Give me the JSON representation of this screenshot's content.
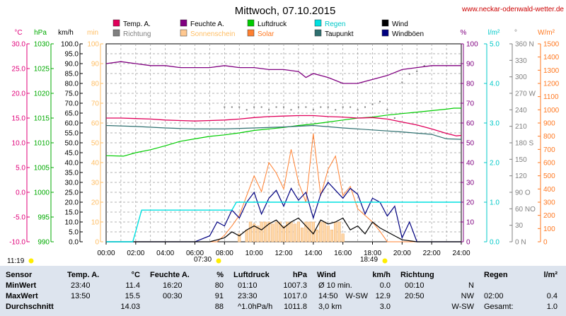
{
  "chart_data": {
    "type": "line",
    "title": "Mittwoch, 07.10.2015",
    "source": "www.neckar-odenwald-wetter.de",
    "legend": [
      {
        "label": "Temp. A.",
        "color": "#e0005a"
      },
      {
        "label": "Feuchte A.",
        "color": "#800080"
      },
      {
        "label": "Luftdruck",
        "color": "#00cc00"
      },
      {
        "label": "Regen",
        "color": "#00e0e0"
      },
      {
        "label": "Wind",
        "color": "#000000"
      },
      {
        "label": "Richtung",
        "color": "#808080"
      },
      {
        "label": "Sonnenschein",
        "color": "#ffc890"
      },
      {
        "label": "Solar",
        "color": "#ff8030"
      },
      {
        "label": "Taupunkt",
        "color": "#2f7070"
      },
      {
        "label": "Windböen",
        "color": "#000080"
      }
    ],
    "axis_units": {
      "temp": "°C",
      "pressure": "hPa",
      "wind": "km/h",
      "sun": "min",
      "humidity": "%",
      "rain": "l/m²",
      "direction": "°",
      "solar": "W/m²"
    },
    "x_ticks": [
      "00:00",
      "02:00",
      "04:00",
      "06:00",
      "08:00",
      "10:00",
      "12:00",
      "14:00",
      "16:00",
      "18:00",
      "20:00",
      "22:00",
      "24:00"
    ],
    "ylim": {
      "temp": [
        -10,
        30
      ],
      "pressure": [
        990,
        1030
      ],
      "wind": [
        0,
        100
      ],
      "sun": [
        0,
        100
      ],
      "humidity": [
        0,
        100
      ],
      "rain": [
        0,
        5
      ],
      "direction": [
        0,
        360
      ],
      "solar": [
        0,
        1500
      ]
    },
    "y_ticks": {
      "temp": [
        "-10.0",
        "-5.0",
        "0.0",
        "5.0",
        "10.0",
        "15.0",
        "20.0",
        "25.0",
        "30.0"
      ],
      "pressure": [
        "990",
        "995",
        "1000",
        "1005",
        "1010",
        "1015",
        "1020",
        "1025",
        "1030"
      ],
      "wind": [
        "0.0",
        "5.0",
        "10.0",
        "15.0",
        "20.0",
        "25.0",
        "30.0",
        "35.0",
        "40.0",
        "45.0",
        "50.0",
        "55.0",
        "60.0",
        "65.0",
        "70.0",
        "75.0",
        "80.0",
        "85.0",
        "90.0",
        "95.0",
        "100.0"
      ],
      "sun": [
        "0",
        "10",
        "20",
        "30",
        "40",
        "50",
        "60",
        "70",
        "80",
        "90",
        "100"
      ],
      "humidity": [
        "0",
        "10",
        "20",
        "30",
        "40",
        "50",
        "60",
        "70",
        "80",
        "90",
        "100"
      ],
      "rain": [
        "0.0",
        "1.0",
        "2.0",
        "3.0",
        "4.0",
        "5.0"
      ],
      "direction": [
        "0 N",
        "30",
        "60 NO",
        "90 O",
        "120",
        "150",
        "180 S",
        "210",
        "240",
        "270 W",
        "300",
        "330",
        "360 N"
      ],
      "solar": [
        "0",
        "100",
        "200",
        "300",
        "400",
        "500",
        "600",
        "700",
        "800",
        "900",
        "1000",
        "1100",
        "1200",
        "1300",
        "1400",
        "1500"
      ]
    },
    "sun_events": {
      "sunrise": "07:30",
      "sunset": "18:49",
      "day_length": "11:19"
    },
    "series": [
      {
        "name": "Temp. A.",
        "axis": "temp",
        "x": [
          0,
          1,
          2,
          3,
          4,
          5,
          6,
          7,
          8,
          9,
          10,
          11,
          12,
          13,
          14,
          15,
          16,
          17,
          18,
          19,
          20,
          21,
          22,
          23,
          23.67,
          24
        ],
        "y": [
          15.0,
          15.0,
          14.9,
          14.8,
          14.6,
          14.5,
          14.4,
          14.5,
          14.6,
          14.8,
          15.1,
          15.3,
          15.4,
          15.5,
          15.5,
          15.3,
          15.2,
          15.0,
          15.1,
          14.8,
          14.2,
          13.6,
          12.8,
          11.9,
          11.4,
          11.5
        ]
      },
      {
        "name": "Feuchte A.",
        "axis": "humidity",
        "x": [
          0,
          1,
          2,
          3,
          4,
          5,
          6,
          7,
          8,
          9,
          10,
          11,
          12,
          13,
          13.5,
          14,
          15,
          16,
          17,
          18,
          19,
          20,
          21,
          22,
          23,
          24
        ],
        "y": [
          90,
          91,
          90,
          89,
          89,
          88,
          88,
          88,
          89,
          88,
          88,
          87,
          87,
          86,
          83,
          85,
          83,
          80,
          80,
          82,
          84,
          87,
          88,
          89,
          89,
          89
        ]
      },
      {
        "name": "Luftdruck",
        "axis": "pressure",
        "x": [
          0,
          1.17,
          2,
          3,
          4,
          5,
          6,
          7,
          8,
          9,
          10,
          11,
          12,
          13,
          14,
          15,
          16,
          17,
          18,
          19,
          20,
          21,
          22,
          23,
          23.5,
          24
        ],
        "y": [
          1007.4,
          1007.3,
          1008.0,
          1008.6,
          1009.4,
          1010.3,
          1010.8,
          1011.3,
          1011.6,
          1012.0,
          1012.5,
          1012.8,
          1013.1,
          1013.5,
          1013.8,
          1014.2,
          1014.6,
          1015.0,
          1015.2,
          1015.6,
          1015.9,
          1016.2,
          1016.5,
          1016.8,
          1017.0,
          1017.0
        ]
      },
      {
        "name": "Taupunkt",
        "axis": "temp",
        "x": [
          0,
          2,
          4,
          6,
          8,
          10,
          12,
          14,
          16,
          18,
          20,
          22,
          23,
          24
        ],
        "y": [
          13.5,
          13.3,
          13.0,
          12.8,
          12.8,
          13.0,
          13.2,
          13.5,
          13.0,
          12.6,
          12.2,
          11.7,
          10.8,
          10.7
        ]
      },
      {
        "name": "Regen",
        "axis": "rain",
        "x": [
          0,
          1.8,
          2.4,
          8.5,
          8.8,
          23.9,
          24
        ],
        "y": [
          0,
          0,
          0.8,
          0.8,
          1.0,
          1.0,
          1.0
        ]
      },
      {
        "name": "Wind",
        "axis": "wind",
        "x": [
          0,
          7,
          8,
          8.5,
          9,
          9.5,
          10,
          10.5,
          11,
          11.5,
          12,
          12.5,
          13,
          13.5,
          14,
          14.5,
          15,
          15.5,
          16,
          16.5,
          17,
          17.5,
          18,
          18.5,
          19,
          19.5,
          20,
          21,
          24
        ],
        "y": [
          0,
          0,
          2,
          5,
          3,
          6,
          8,
          6,
          9,
          11,
          7,
          10,
          12,
          8,
          4,
          11,
          9,
          10,
          12,
          6,
          8,
          4,
          10,
          7,
          5,
          3,
          1,
          0,
          0
        ]
      },
      {
        "name": "Windböen",
        "axis": "wind",
        "x": [
          0,
          6,
          7,
          7.5,
          8,
          8.5,
          9,
          9.5,
          10,
          10.5,
          11,
          11.5,
          12,
          12.5,
          13,
          13.5,
          14,
          14.5,
          15,
          15.5,
          16,
          16.5,
          17,
          17.5,
          18,
          18.5,
          19,
          19.5,
          20,
          20.5,
          21,
          22,
          24
        ],
        "y": [
          0,
          0,
          3,
          10,
          8,
          16,
          12,
          20,
          25,
          14,
          22,
          26,
          18,
          27,
          21,
          25,
          12,
          24,
          30,
          26,
          22,
          27,
          24,
          14,
          22,
          20,
          13,
          18,
          2,
          10,
          0,
          0,
          0
        ]
      },
      {
        "name": "Solar",
        "axis": "solar",
        "x": [
          0,
          7.5,
          8,
          8.5,
          9,
          9.5,
          10,
          10.5,
          11,
          11.5,
          12,
          12.5,
          13,
          13.5,
          14,
          14.5,
          15,
          15.5,
          16,
          16.5,
          17,
          17.5,
          18,
          18.5,
          19,
          24
        ],
        "y": [
          0,
          0,
          50,
          120,
          200,
          350,
          500,
          380,
          600,
          520,
          400,
          700,
          450,
          300,
          820,
          350,
          550,
          650,
          350,
          420,
          250,
          200,
          150,
          80,
          0,
          0
        ]
      },
      {
        "name": "Sonnenschein",
        "axis": "sun",
        "x": [
          9,
          9.25,
          9.5,
          9.75,
          10,
          10.25,
          10.5,
          10.75,
          11,
          11.25,
          11.5,
          11.75,
          12,
          12.25,
          12.5,
          12.75,
          13,
          13.25,
          13.5,
          13.75,
          14,
          14.25,
          14.5,
          14.75,
          15,
          15.25,
          15.5,
          15.75,
          16
        ],
        "y": [
          4,
          0,
          6,
          10,
          9,
          8,
          10,
          10,
          10,
          9,
          10,
          10,
          8,
          10,
          10,
          9,
          10,
          7,
          10,
          10,
          10,
          6,
          10,
          10,
          8,
          6,
          10,
          10,
          4
        ]
      },
      {
        "name": "Richtung",
        "axis": "direction",
        "x": [
          8,
          8.5,
          9,
          9.5,
          10,
          10.5,
          11,
          11.5,
          12,
          12.5,
          13,
          13.5,
          14,
          14.5,
          15,
          15.5,
          16,
          16.5,
          17,
          17.5,
          18,
          18.5,
          19,
          19.5,
          20,
          20.5,
          21,
          21.5
        ],
        "y": [
          245,
          245,
          245,
          240,
          245,
          245,
          240,
          245,
          245,
          240,
          245,
          245,
          240,
          245,
          245,
          240,
          245,
          245,
          240,
          245,
          250,
          255,
          240,
          225,
          290,
          305,
          310,
          320
        ]
      }
    ]
  },
  "stats": {
    "header": {
      "sensor": "Sensor",
      "temp": "Temp. A.",
      "temp_unit": "°C",
      "hum": "Feuchte A.",
      "hum_unit": "%",
      "press": "Luftdruck",
      "press_unit": "hPa",
      "wind": "Wind",
      "wind_unit": "km/h",
      "dir": "Richtung",
      "rain": "Regen",
      "rain_unit": "l/m²"
    },
    "rows": [
      {
        "label": "MinWert",
        "t_time": "23:40",
        "t_val": "11.4",
        "h_time": "16:20",
        "h_val": "80",
        "p_time": "01:10",
        "p_val": "1007.3",
        "w_time": "Ø 10 min.",
        "w_dir": "",
        "w_val": "0.0",
        "d_time": "00:10",
        "d_val": "N",
        "r_time": "",
        "r_val": ""
      },
      {
        "label": "MaxWert",
        "t_time": "13:50",
        "t_val": "15.5",
        "h_time": "00:30",
        "h_val": "91",
        "p_time": "23:30",
        "p_val": "1017.0",
        "w_time": "14:50",
        "w_dir": "W-SW",
        "w_val": "12.9",
        "d_time": "20:50",
        "d_val": "NW",
        "r_time": "02:00",
        "r_val": "0.4"
      },
      {
        "label": "Durchschnitt",
        "t_time": "",
        "t_val": "14.03",
        "h_time": "",
        "h_val": "88",
        "p_time": "^1.0hPa/h",
        "p_val": "1011.8",
        "w_time": "3,0 km",
        "w_dir": "",
        "w_val": "3.0",
        "d_time": "",
        "d_val": "W-SW",
        "r_time": "Gesamt:",
        "r_val": "1.0"
      }
    ]
  }
}
